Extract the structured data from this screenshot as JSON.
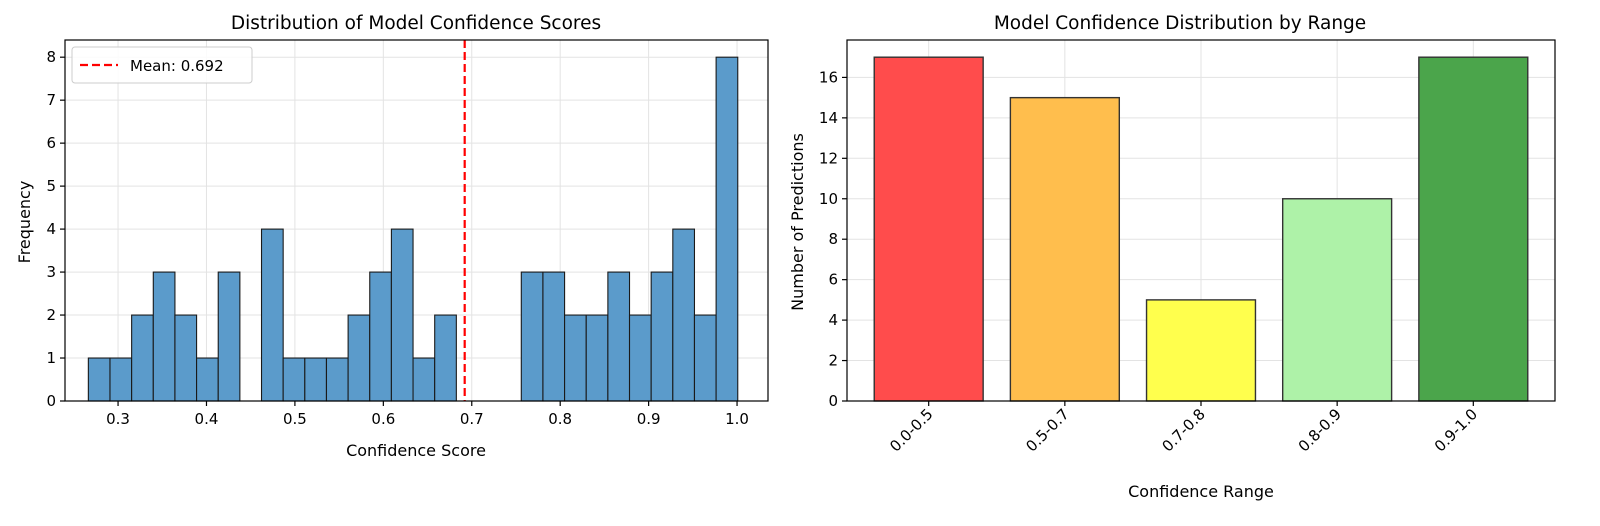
{
  "chart_data": [
    {
      "type": "bar",
      "subtype": "histogram",
      "title": "Distribution of Model Confidence Scores",
      "xlabel": "Confidence Score",
      "ylabel": "Frequency",
      "xlim": [
        0.24,
        1.035
      ],
      "ylim": [
        0,
        8.4
      ],
      "xticks": [
        "0.3",
        "0.4",
        "0.5",
        "0.6",
        "0.7",
        "0.8",
        "0.9",
        "1.0"
      ],
      "yticks": [
        "0",
        "1",
        "2",
        "3",
        "4",
        "5",
        "6",
        "7",
        "8"
      ],
      "grid": true,
      "bin_start": 0.2664,
      "bin_width": 0.02448,
      "counts": [
        1,
        1,
        2,
        3,
        2,
        1,
        3,
        0,
        4,
        1,
        1,
        1,
        2,
        3,
        4,
        1,
        2,
        0,
        0,
        0,
        3,
        3,
        2,
        2,
        3,
        2,
        3,
        4,
        2,
        8
      ],
      "bar_color": "#5b9bcb",
      "mean_line": {
        "value": 0.692,
        "label": "Mean: 0.692",
        "color": "#ff0000",
        "style": "dashed"
      },
      "legend_position": "top-left"
    },
    {
      "type": "bar",
      "title": "Model Confidence Distribution by Range",
      "xlabel": "Confidence Range",
      "ylabel": "Number of Predictions",
      "categories": [
        "0.0-0.5",
        "0.5-0.7",
        "0.7-0.8",
        "0.8-0.9",
        "0.9-1.0"
      ],
      "values": [
        17,
        15,
        5,
        10,
        17
      ],
      "colors": [
        "#ff4c4c",
        "#ffbe4d",
        "#ffff4d",
        "#aef2a8",
        "#4ba54b"
      ],
      "ylim": [
        0,
        17.85
      ],
      "yticks": [
        "0",
        "2",
        "4",
        "6",
        "8",
        "10",
        "12",
        "14",
        "16"
      ],
      "grid": true
    }
  ]
}
